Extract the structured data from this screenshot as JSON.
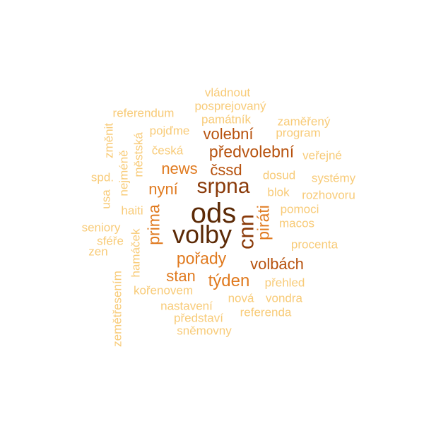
{
  "words": {
    "ods": "ods",
    "volby": "volby",
    "srpna": "srpna",
    "cnn": "cnn",
    "predvolebni": "předvolební",
    "volebni": "volební",
    "news": "news",
    "cssd": "čssd",
    "nyni": "nyní",
    "prima": "prima",
    "pirati": "piráti",
    "porady": "pořady",
    "volbach": "volbách",
    "stan": "stan",
    "tyden": "týden",
    "vladnout": "vládnout",
    "posprejovany": "posprejovaný",
    "referendum": "referendum",
    "pamatnik": "památník",
    "zamereny": "zaměřený",
    "program": "program",
    "pojdme": "pojďme",
    "zmenit": "změnit",
    "ceska": "česká",
    "verejne": "veřejné",
    "nejmene": "nejméně",
    "mestska": "městská",
    "spd": "spd.",
    "dosud": "dosud",
    "systemy": "systémy",
    "blok": "blok",
    "rozhovoru": "rozhovoru",
    "usa": "usa",
    "haiti": "haiti",
    "pomoci": "pomoci",
    "macos": "macos",
    "seniory": "seniory",
    "sfere": "sféře",
    "procenta": "procenta",
    "zen": "zen",
    "hamacek": "hamáček",
    "prehled": "přehled",
    "zemetreseni": "zemětřesením",
    "korenovem": "kořenovem",
    "vondra": "vondra",
    "nova": "nová",
    "nastaveni": "nastavení",
    "referenda": "referenda",
    "predstavi": "představí",
    "snemovny": "sněmovny"
  }
}
